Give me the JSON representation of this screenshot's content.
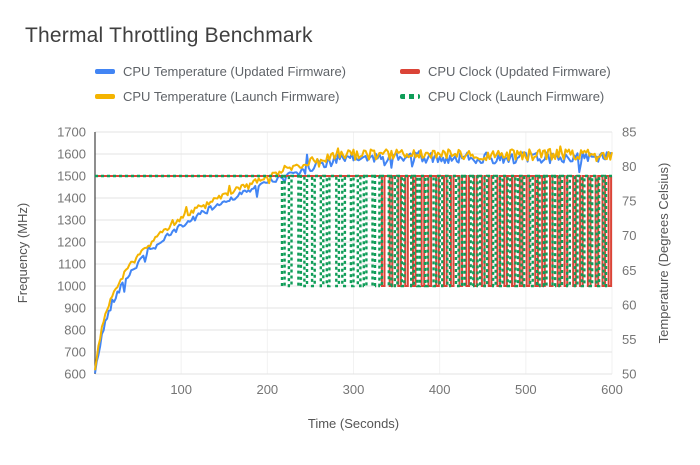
{
  "chart_data": {
    "type": "line",
    "title": "Thermal Throttling Benchmark",
    "x_axis": {
      "label": "Time (Seconds)",
      "min": 0,
      "max": 600,
      "ticks": [
        100,
        200,
        300,
        400,
        500,
        600
      ]
    },
    "left_axis": {
      "label": "Frequency (MHz)",
      "min": 600,
      "max": 1700,
      "ticks": [
        1700,
        1600,
        1500,
        1400,
        1300,
        1200,
        1100,
        1000,
        900,
        800,
        700,
        600
      ]
    },
    "right_axis": {
      "label": "Temperature (Degrees Celsius)",
      "min": 50,
      "max": 85,
      "ticks": [
        85,
        80,
        75,
        70,
        65,
        60,
        55,
        50
      ]
    },
    "grid_color": "#e3e3e3",
    "grid_color_vertical": "#f2f2f2",
    "baseline_color": "#424242",
    "axis_text_color": "#757575",
    "axis_title_color": "#555555",
    "legend_position": "top",
    "series": [
      {
        "id": "cpu-temp-updated",
        "name": "CPU Temperature (Updated Firmware)",
        "color": "#4285F4",
        "axis": "right",
        "style": "solid",
        "unit": "C",
        "anchors_t": [
          0,
          4,
          8,
          12,
          16,
          22,
          30,
          40,
          50,
          62,
          75,
          90,
          105,
          120,
          140,
          160,
          180,
          200,
          215,
          230,
          245,
          260,
          280,
          300,
          600
        ],
        "anchors_v": [
          50,
          53,
          55.5,
          57.5,
          59,
          60.8,
          62.6,
          64.5,
          66,
          67.5,
          69,
          70.5,
          71.8,
          72.9,
          74.3,
          75.5,
          76.6,
          77.7,
          78.4,
          79.1,
          79.8,
          80.4,
          81,
          81.2,
          81.3
        ]
      },
      {
        "id": "cpu-clock-updated",
        "name": "CPU Clock (Updated Firmware)",
        "color": "#DB4437",
        "axis": "left",
        "style": "solid",
        "unit": "MHz",
        "base_mhz": 1500,
        "throttle_mhz": 1000,
        "dip_duration": 3,
        "dip_starts": [
          333,
          342,
          352,
          360,
          369,
          379,
          387,
          396,
          405,
          413,
          423,
          431,
          440,
          449,
          457,
          467,
          475,
          484,
          493,
          501,
          511,
          519,
          528,
          537,
          545,
          555,
          563,
          572,
          581,
          589,
          596
        ]
      },
      {
        "id": "cpu-temp-launch",
        "name": "CPU Temperature (Launch Firmware)",
        "color": "#F4B400",
        "axis": "right",
        "style": "solid",
        "unit": "C",
        "anchors_t": [
          0,
          4,
          8,
          12,
          16,
          22,
          30,
          40,
          50,
          62,
          75,
          90,
          105,
          120,
          140,
          160,
          180,
          200,
          215,
          230,
          245,
          260,
          280,
          300,
          600
        ],
        "anchors_v": [
          50.4,
          54,
          56.6,
          58.6,
          60.1,
          61.9,
          63.7,
          65.6,
          67.1,
          68.6,
          70.1,
          71.6,
          72.9,
          74,
          75.4,
          76.5,
          77.6,
          78.6,
          79.3,
          79.9,
          80.6,
          81.1,
          81.5,
          81.7,
          81.7
        ]
      },
      {
        "id": "cpu-clock-launch",
        "name": "CPU Clock (Launch Firmware)",
        "color": "#0F9D58",
        "axis": "left",
        "style": "dashed",
        "unit": "MHz",
        "base_mhz": 1500,
        "throttle_mhz": 1000,
        "dip_duration": 3,
        "dip_starts": [
          217,
          225,
          236,
          243,
          252,
          262,
          269,
          280,
          287,
          297,
          305,
          312,
          322,
          330,
          341,
          348,
          356,
          367,
          374,
          383,
          393,
          400,
          409,
          419,
          426,
          436,
          444,
          452,
          462,
          470,
          479,
          488,
          495,
          505,
          513,
          521,
          531,
          539,
          548,
          557,
          565,
          574,
          582,
          590
        ]
      }
    ],
    "noise": {
      "seed": 42,
      "sample_step": 2,
      "ramp_end_s": 235,
      "ramp_amp_c": 0.4,
      "plateau_amp_c": 0.8,
      "spike_prob": 0.08,
      "spike_amp_c": 1.6
    }
  }
}
